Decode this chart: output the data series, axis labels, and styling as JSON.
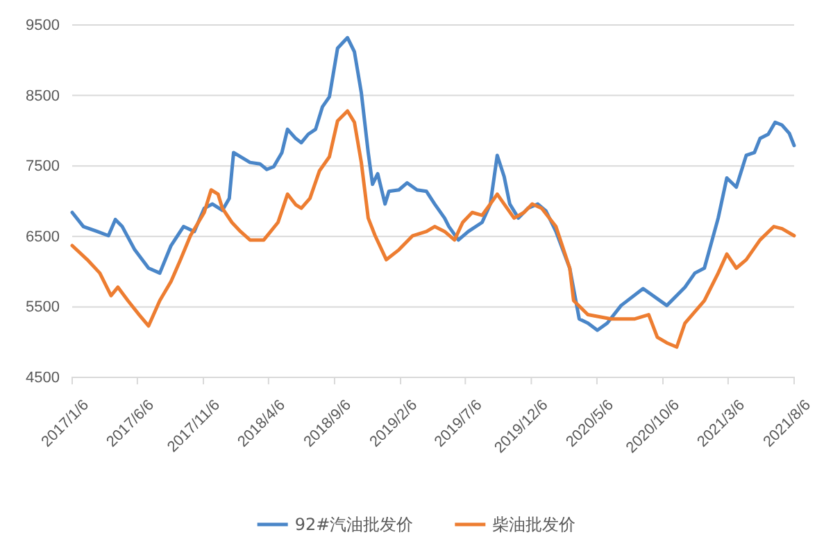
{
  "chart_data": {
    "type": "line",
    "ylim": [
      4500,
      9500
    ],
    "yticks": [
      4500,
      5500,
      6500,
      7500,
      8500,
      9500
    ],
    "xlim": [
      "2017-01-06",
      "2021-08-06"
    ],
    "xticks": [
      {
        "value": "2017-01-06",
        "label": "2017/1/6"
      },
      {
        "value": "2017-06-06",
        "label": "2017/6/6"
      },
      {
        "value": "2017-11-06",
        "label": "2017/11/6"
      },
      {
        "value": "2018-04-06",
        "label": "2018/4/6"
      },
      {
        "value": "2018-09-06",
        "label": "2018/9/6"
      },
      {
        "value": "2019-02-06",
        "label": "2019/2/6"
      },
      {
        "value": "2019-07-06",
        "label": "2019/7/6"
      },
      {
        "value": "2019-12-06",
        "label": "2019/12/6"
      },
      {
        "value": "2020-05-06",
        "label": "2020/5/6"
      },
      {
        "value": "2020-10-06",
        "label": "2020/10/6"
      },
      {
        "value": "2021-03-06",
        "label": "2021/3/6"
      },
      {
        "value": "2021-08-06",
        "label": "2021/8/6"
      }
    ],
    "grid": "y",
    "legend": "bottom",
    "marker": "none",
    "line_style": "solid",
    "series": [
      {
        "name": "92#汽油批发价",
        "color": "#4a86c8",
        "x": [
          "2017-01-06",
          "2017-02-01",
          "2017-03-05",
          "2017-03-31",
          "2017-04-16",
          "2017-05-02",
          "2017-05-31",
          "2017-07-02",
          "2017-07-28",
          "2017-08-23",
          "2017-09-21",
          "2017-10-16",
          "2017-11-08",
          "2017-11-27",
          "2017-12-20",
          "2018-01-05",
          "2018-01-15",
          "2018-01-31",
          "2018-02-22",
          "2018-03-17",
          "2018-04-02",
          "2018-04-18",
          "2018-05-07",
          "2018-05-20",
          "2018-06-08",
          "2018-06-21",
          "2018-07-07",
          "2018-07-24",
          "2018-08-09",
          "2018-08-25",
          "2018-09-13",
          "2018-10-06",
          "2018-10-22",
          "2018-11-07",
          "2018-11-23",
          "2018-12-03",
          "2018-12-15",
          "2019-01-01",
          "2019-01-10",
          "2019-02-02",
          "2019-02-21",
          "2019-03-16",
          "2019-04-07",
          "2019-04-26",
          "2019-05-19",
          "2019-05-29",
          "2019-06-20",
          "2019-07-13",
          "2019-08-14",
          "2019-09-02",
          "2019-09-18",
          "2019-10-04",
          "2019-10-17",
          "2019-11-06",
          "2019-11-28",
          "2019-12-21",
          "2020-01-09",
          "2020-02-01",
          "2020-03-04",
          "2020-03-26",
          "2020-04-15",
          "2020-05-07",
          "2020-05-30",
          "2020-07-01",
          "2020-08-21",
          "2020-10-15",
          "2020-11-26",
          "2020-12-19",
          "2021-01-10",
          "2021-02-11",
          "2021-03-03",
          "2021-03-25",
          "2021-04-17",
          "2021-05-06",
          "2021-05-19",
          "2021-06-07",
          "2021-06-23",
          "2021-07-09",
          "2021-07-26",
          "2021-08-06"
        ],
        "values": [
          6840,
          6640,
          6570,
          6510,
          6740,
          6640,
          6310,
          6050,
          5980,
          6370,
          6640,
          6570,
          6900,
          6960,
          6870,
          7040,
          7690,
          7630,
          7550,
          7530,
          7450,
          7490,
          7690,
          8020,
          7890,
          7830,
          7950,
          8020,
          8340,
          8480,
          9170,
          9320,
          9120,
          8540,
          7690,
          7240,
          7390,
          6960,
          7140,
          7160,
          7260,
          7160,
          7140,
          6960,
          6760,
          6640,
          6450,
          6570,
          6700,
          6960,
          7650,
          7350,
          6960,
          6760,
          6900,
          6960,
          6860,
          6570,
          6050,
          5330,
          5270,
          5170,
          5270,
          5520,
          5760,
          5520,
          5780,
          5980,
          6050,
          6760,
          7330,
          7200,
          7650,
          7690,
          7890,
          7950,
          8120,
          8080,
          7960,
          7790
        ]
      },
      {
        "name": "柴油批发价",
        "color": "#ed7d31",
        "x": [
          "2017-01-06",
          "2017-02-10",
          "2017-03-11",
          "2017-04-06",
          "2017-04-22",
          "2017-05-15",
          "2017-06-10",
          "2017-07-02",
          "2017-07-28",
          "2017-08-23",
          "2017-09-14",
          "2017-10-07",
          "2017-11-08",
          "2017-11-24",
          "2017-12-10",
          "2017-12-20",
          "2018-01-11",
          "2018-01-31",
          "2018-02-22",
          "2018-03-26",
          "2018-04-28",
          "2018-05-20",
          "2018-06-08",
          "2018-06-21",
          "2018-07-11",
          "2018-08-02",
          "2018-08-25",
          "2018-09-13",
          "2018-10-06",
          "2018-10-22",
          "2018-11-07",
          "2018-11-23",
          "2018-12-09",
          "2019-01-04",
          "2019-02-02",
          "2019-03-06",
          "2019-04-07",
          "2019-04-26",
          "2019-05-19",
          "2019-06-11",
          "2019-06-30",
          "2019-07-22",
          "2019-08-14",
          "2019-09-02",
          "2019-09-18",
          "2019-10-04",
          "2019-10-27",
          "2019-11-19",
          "2019-12-08",
          "2019-12-30",
          "2020-02-01",
          "2020-03-04",
          "2020-03-13",
          "2020-04-15",
          "2020-06-08",
          "2020-08-02",
          "2020-09-03",
          "2020-09-23",
          "2020-10-15",
          "2020-11-07",
          "2020-11-26",
          "2021-01-10",
          "2021-02-11",
          "2021-03-03",
          "2021-03-25",
          "2021-04-17",
          "2021-05-19",
          "2021-06-20",
          "2021-07-09",
          "2021-08-06"
        ],
        "values": [
          6370,
          6170,
          5980,
          5660,
          5780,
          5590,
          5390,
          5230,
          5590,
          5860,
          6170,
          6510,
          6840,
          7160,
          7100,
          6900,
          6700,
          6570,
          6450,
          6450,
          6700,
          7100,
          6950,
          6900,
          7040,
          7430,
          7630,
          8140,
          8280,
          8120,
          7550,
          6760,
          6510,
          6170,
          6310,
          6510,
          6570,
          6640,
          6570,
          6450,
          6700,
          6840,
          6800,
          6960,
          7100,
          6960,
          6760,
          6840,
          6960,
          6900,
          6640,
          6050,
          5590,
          5390,
          5330,
          5330,
          5390,
          5070,
          4990,
          4930,
          5270,
          5590,
          5980,
          6250,
          6050,
          6170,
          6450,
          6640,
          6610,
          6510
        ]
      }
    ]
  }
}
